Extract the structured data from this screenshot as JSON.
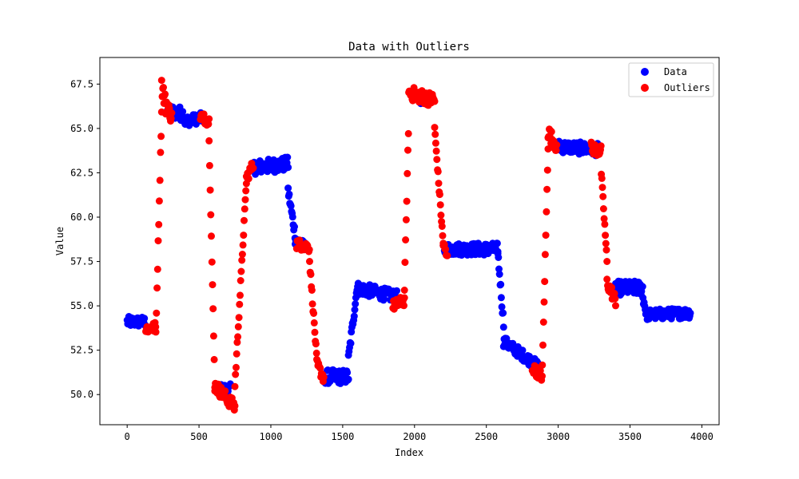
{
  "chart_data": {
    "type": "scatter",
    "title": "Data with Outliers",
    "xlabel": "Index",
    "ylabel": "Value",
    "xlim": [
      -190,
      4120
    ],
    "ylim": [
      48.3,
      69.0
    ],
    "x_ticks": [
      0,
      500,
      1000,
      1500,
      2000,
      2500,
      3000,
      3500,
      4000
    ],
    "x_tick_labels": [
      "0",
      "500",
      "1000",
      "1500",
      "2000",
      "2500",
      "3000",
      "3500",
      "4000"
    ],
    "y_ticks": [
      50.0,
      52.5,
      55.0,
      57.5,
      60.0,
      62.5,
      65.0,
      67.5
    ],
    "y_tick_labels": [
      "50.0",
      "52.5",
      "55.0",
      "57.5",
      "60.0",
      "62.5",
      "65.0",
      "67.5"
    ],
    "grid": false,
    "legend": {
      "position": "top-right",
      "entries": [
        {
          "label": "Data",
          "color": "#0000ff"
        },
        {
          "label": "Outliers",
          "color": "#ff0000"
        }
      ]
    },
    "series": [
      {
        "name": "Data",
        "color": "#0000ff",
        "segments": [
          {
            "x0": 0,
            "x1": 130,
            "y0": 54.1,
            "y1": 54.1,
            "noise": 0.3
          },
          {
            "x0": 270,
            "x1": 400,
            "y0": 66.0,
            "y1": 65.8,
            "noise": 0.4
          },
          {
            "x0": 400,
            "x1": 520,
            "y0": 65.4,
            "y1": 65.6,
            "noise": 0.3
          },
          {
            "x0": 630,
            "x1": 720,
            "y0": 50.3,
            "y1": 50.3,
            "noise": 0.3
          },
          {
            "x0": 880,
            "x1": 1120,
            "y0": 62.8,
            "y1": 63.0,
            "noise": 0.4
          },
          {
            "x0": 1120,
            "x1": 1170,
            "y0": 61.5,
            "y1": 59.0,
            "noise": 0.3
          },
          {
            "x0": 1170,
            "x1": 1240,
            "y0": 58.7,
            "y1": 58.3,
            "noise": 0.3
          },
          {
            "x0": 1380,
            "x1": 1540,
            "y0": 51.0,
            "y1": 51.0,
            "noise": 0.4
          },
          {
            "x0": 1540,
            "x1": 1600,
            "y0": 52.0,
            "y1": 56.0,
            "noise": 0.3
          },
          {
            "x0": 1600,
            "x1": 1880,
            "y0": 56.0,
            "y1": 55.5,
            "noise": 0.35
          },
          {
            "x0": 2040,
            "x1": 2060,
            "y0": 66.8,
            "y1": 66.6,
            "noise": 0.4
          },
          {
            "x0": 2200,
            "x1": 2580,
            "y0": 58.2,
            "y1": 58.2,
            "noise": 0.35
          },
          {
            "x0": 2580,
            "x1": 2620,
            "y0": 58.0,
            "y1": 54.0,
            "noise": 0.3
          },
          {
            "x0": 2620,
            "x1": 2860,
            "y0": 53.0,
            "y1": 51.6,
            "noise": 0.3
          },
          {
            "x0": 2990,
            "x1": 3280,
            "y0": 64.0,
            "y1": 63.8,
            "noise": 0.35
          },
          {
            "x0": 3400,
            "x1": 3590,
            "y0": 56.0,
            "y1": 56.0,
            "noise": 0.4
          },
          {
            "x0": 3590,
            "x1": 3620,
            "y0": 55.5,
            "y1": 54.3,
            "noise": 0.3
          },
          {
            "x0": 3620,
            "x1": 3920,
            "y0": 54.5,
            "y1": 54.6,
            "noise": 0.3
          }
        ]
      },
      {
        "name": "Outliers",
        "color": "#ff0000",
        "segments": [
          {
            "x0": 130,
            "x1": 200,
            "y0": 53.7,
            "y1": 53.8,
            "noise": 0.3
          },
          {
            "x0": 200,
            "x1": 240,
            "y0": 53.5,
            "y1": 66.0,
            "noise": 0.2
          },
          {
            "x0": 240,
            "x1": 270,
            "y0": 67.5,
            "y1": 66.2,
            "noise": 0.6
          },
          {
            "x0": 270,
            "x1": 310,
            "y0": 66.5,
            "y1": 65.6,
            "noise": 0.4
          },
          {
            "x0": 510,
            "x1": 570,
            "y0": 65.7,
            "y1": 65.4,
            "noise": 0.3
          },
          {
            "x0": 570,
            "x1": 610,
            "y0": 64.5,
            "y1": 50.5,
            "noise": 0.2
          },
          {
            "x0": 610,
            "x1": 750,
            "y0": 50.5,
            "y1": 49.3,
            "noise": 0.35
          },
          {
            "x0": 750,
            "x1": 830,
            "y0": 50.5,
            "y1": 62.0,
            "noise": 0.2
          },
          {
            "x0": 830,
            "x1": 880,
            "y0": 62.2,
            "y1": 63.0,
            "noise": 0.3
          },
          {
            "x0": 1180,
            "x1": 1270,
            "y0": 58.5,
            "y1": 58.3,
            "noise": 0.3
          },
          {
            "x0": 1270,
            "x1": 1320,
            "y0": 57.5,
            "y1": 52.0,
            "noise": 0.2
          },
          {
            "x0": 1320,
            "x1": 1370,
            "y0": 51.7,
            "y1": 50.9,
            "noise": 0.3
          },
          {
            "x0": 1850,
            "x1": 1930,
            "y0": 55.0,
            "y1": 55.3,
            "noise": 0.3
          },
          {
            "x0": 1930,
            "x1": 1960,
            "y0": 56.0,
            "y1": 65.5,
            "noise": 0.2
          },
          {
            "x0": 1960,
            "x1": 2140,
            "y0": 67.0,
            "y1": 66.6,
            "noise": 0.4
          },
          {
            "x0": 2140,
            "x1": 2200,
            "y0": 65.0,
            "y1": 58.5,
            "noise": 0.2
          },
          {
            "x0": 2200,
            "x1": 2230,
            "y0": 58.5,
            "y1": 57.6,
            "noise": 0.3
          },
          {
            "x0": 2820,
            "x1": 2890,
            "y0": 51.5,
            "y1": 51.0,
            "noise": 0.3
          },
          {
            "x0": 2890,
            "x1": 2930,
            "y0": 51.5,
            "y1": 64.0,
            "noise": 0.2
          },
          {
            "x0": 2930,
            "x1": 2990,
            "y0": 64.8,
            "y1": 64.0,
            "noise": 0.4
          },
          {
            "x0": 3230,
            "x1": 3300,
            "y0": 63.9,
            "y1": 63.7,
            "noise": 0.35
          },
          {
            "x0": 3300,
            "x1": 3340,
            "y0": 62.5,
            "y1": 57.5,
            "noise": 0.2
          },
          {
            "x0": 3340,
            "x1": 3400,
            "y0": 56.3,
            "y1": 55.3,
            "noise": 0.35
          }
        ]
      }
    ]
  }
}
